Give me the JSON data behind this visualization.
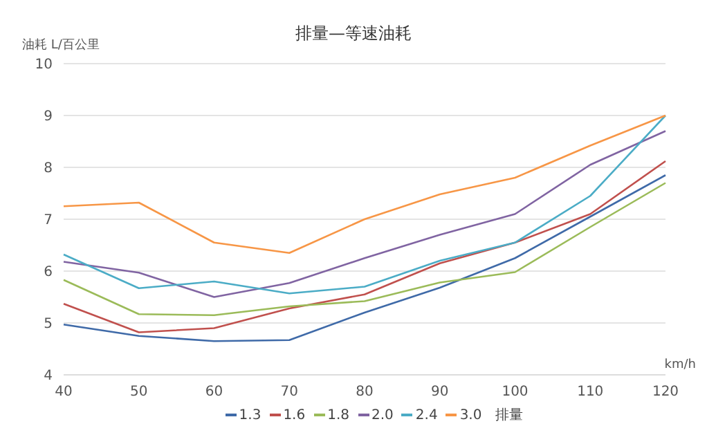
{
  "chart_data": {
    "type": "line",
    "title": "排量—等速油耗",
    "ylabel": "油耗 L/百公里",
    "xlabel": "km/h",
    "legend_title": "排量",
    "categories": [
      "40",
      "50",
      "60",
      "70",
      "80",
      "90",
      "100",
      "110",
      "120"
    ],
    "series": [
      {
        "name": "1.3",
        "color": "#3f6aa8",
        "values": [
          4.97,
          4.75,
          4.65,
          4.67,
          5.2,
          5.68,
          6.25,
          7.05,
          7.85
        ]
      },
      {
        "name": "1.6",
        "color": "#c0504d",
        "values": [
          5.37,
          4.82,
          4.9,
          5.28,
          5.55,
          6.15,
          6.55,
          7.1,
          8.12
        ]
      },
      {
        "name": "1.8",
        "color": "#9bbb59",
        "values": [
          5.83,
          5.17,
          5.15,
          5.32,
          5.42,
          5.78,
          5.98,
          6.85,
          7.7
        ]
      },
      {
        "name": "2.0",
        "color": "#8064a2",
        "values": [
          6.18,
          5.97,
          5.5,
          5.77,
          6.25,
          6.7,
          7.1,
          8.05,
          8.7
        ]
      },
      {
        "name": "2.4",
        "color": "#4bacc6",
        "values": [
          6.32,
          5.67,
          5.8,
          5.57,
          5.7,
          6.2,
          6.55,
          7.45,
          9.0
        ]
      },
      {
        "name": "3.0",
        "color": "#f79646",
        "values": [
          7.25,
          7.32,
          6.55,
          6.35,
          7.0,
          7.48,
          7.8,
          8.42,
          9.0
        ]
      }
    ],
    "ylim": [
      4,
      10
    ],
    "yticks": [
      4,
      5,
      6,
      7,
      8,
      9,
      10
    ],
    "grid": "y",
    "legend": "bottom",
    "marker": "none",
    "line_style": "solid"
  }
}
